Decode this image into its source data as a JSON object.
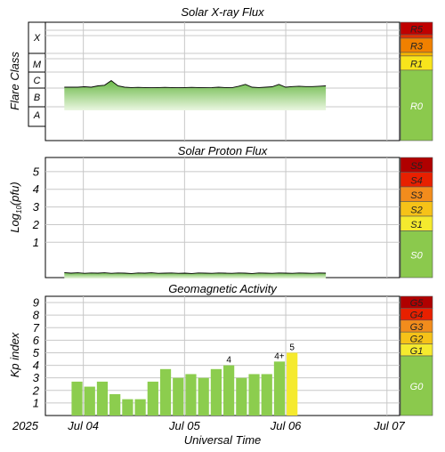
{
  "chart_data": [
    {
      "type": "area",
      "title": "Solar X-ray Flux",
      "ylabel": "Flare Class",
      "class_labels": [
        "X",
        "M",
        "C",
        "B",
        "A"
      ],
      "scale_labels": [
        "R5",
        "R3",
        "R1",
        "R0"
      ],
      "series": [
        {
          "name": "",
          "x_range": [
            "2025-07-03T19:30",
            "2025-07-06T09:30"
          ],
          "values": [
            1.05,
            1.05,
            1.05,
            1.07,
            1.05,
            1.12,
            1.15,
            1.4,
            1.12,
            1.05,
            1.03,
            1.04,
            1.03,
            1.02,
            1.03,
            1.04,
            1.03,
            1.02,
            1.03,
            1.04,
            1.03,
            1.02,
            1.03,
            1.05,
            1.03,
            1.02,
            1.1,
            1.2,
            1.05,
            1.03,
            1.05,
            1.07,
            1.2,
            1.05,
            1.08,
            1.1,
            1.08,
            1.08,
            1.1,
            1.12
          ]
        }
      ]
    },
    {
      "type": "area",
      "title": "Solar Proton Flux",
      "ylabel": "Log10(pfu)",
      "ylim": [
        -1,
        5.8
      ],
      "yticks": [
        "1",
        "2",
        "3",
        "4",
        "5"
      ],
      "scale_labels": [
        "S5",
        "S4",
        "S3",
        "S2",
        "S1",
        "S0"
      ],
      "series": [
        {
          "name": "",
          "x_range": [
            "2025-07-03T19:30",
            "2025-07-06T09:30"
          ],
          "values": [
            -0.72,
            -0.75,
            -0.73,
            -0.76,
            -0.74,
            -0.75,
            -0.73,
            -0.76,
            -0.74,
            -0.75,
            -0.77,
            -0.74,
            -0.75,
            -0.73,
            -0.76,
            -0.75,
            -0.74,
            -0.76,
            -0.75,
            -0.77,
            -0.74,
            -0.75,
            -0.76,
            -0.74,
            -0.75,
            -0.76,
            -0.74,
            -0.75,
            -0.77,
            -0.74,
            -0.75,
            -0.76,
            -0.74,
            -0.75,
            -0.76,
            -0.74,
            -0.75,
            -0.76,
            -0.74,
            -0.75
          ]
        }
      ]
    },
    {
      "type": "bar",
      "title": "Geomagnetic Activity",
      "ylabel": "Kp index",
      "ylim": [
        0,
        9.5
      ],
      "yticks": [
        "1",
        "2",
        "3",
        "4",
        "5",
        "6",
        "7",
        "8",
        "9"
      ],
      "scale_labels": [
        "G5",
        "G4",
        "G3",
        "G2",
        "G1",
        "G0"
      ],
      "bar_start": "2025-07-03T21:00",
      "bar_hours": 3,
      "values": [
        2.7,
        2.3,
        2.7,
        1.7,
        1.3,
        1.3,
        2.7,
        3.7,
        3.0,
        3.3,
        3.0,
        3.7,
        4.0,
        3.0,
        3.3,
        3.3,
        4.3,
        5.0
      ],
      "bar_labels": [
        "",
        "",
        "",
        "",
        "",
        "",
        "",
        "",
        "",
        "",
        "",
        "",
        "4",
        "",
        "",
        "",
        "4+",
        "5"
      ],
      "colors": {
        "quiet": "#8ccd4e",
        "storm": "#f5ea2e"
      }
    }
  ],
  "x_axis": {
    "year": "2025",
    "ticks": [
      "Jul 04",
      "Jul 05",
      "Jul 06",
      "Jul 07"
    ],
    "label": "Universal Time",
    "start": "2025-07-03T15:00",
    "end": "2025-07-07T03:00"
  },
  "colors": {
    "R5": "#c00000",
    "R3": "#f08000",
    "R1": "#f8e41c",
    "R0": "#8bc94d",
    "grid": "#cccccc",
    "fill_top": "#66b544",
    "fill_bottom": "#e6f5db"
  }
}
